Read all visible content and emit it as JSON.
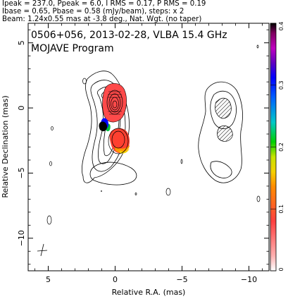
{
  "header": {
    "line1": "Ipeak = 237.0, Ppeak = 6.0, I RMS = 0.17, P RMS = 0.19",
    "line2": "Ibase = 0.65, Pbase = 0.58 (mJy/beam), steps: x 2",
    "line3": "Beam: 1.24x0.55 mas at -3.8 deg., Nat. Wgt. (no taper)"
  },
  "plot_title": {
    "line1": "0506+056, 2013-02-28, VLBA 15.4 GHz",
    "line2": "MOJAVE Program"
  },
  "chart_data": {
    "type": "contour-map",
    "xlabel": "Relative R.A. (mas)",
    "ylabel": "Relative Declination (mas)",
    "xlim": [
      6.5,
      -11.5
    ],
    "ylim": [
      -12.5,
      6.5
    ],
    "x_ticks": [
      5,
      0,
      -5,
      -10
    ],
    "y_ticks": [
      5,
      0,
      -5,
      -10
    ],
    "colorbar": {
      "min": 0,
      "max": 0.4,
      "ticks": [
        0,
        0.1,
        0.2,
        0.3,
        0.4
      ],
      "tick_labels": [
        "0",
        "0.1",
        "0.2",
        "0.3",
        "0.4"
      ],
      "colors": [
        "#ffffff",
        "#ff9090",
        "#ff3b3b",
        "#ff8c00",
        "#f5d000",
        "#c0e000",
        "#00d000",
        "#00c8c8",
        "#0060ff",
        "#0000ff",
        "#6000c0",
        "#c000c0",
        "#800060",
        "#000000"
      ]
    },
    "contour_levels_mJy": [
      0.65,
      1.3,
      2.6,
      5.2,
      10.4,
      20.8,
      41.6,
      83.2,
      166.4
    ],
    "core": {
      "x": 0.1,
      "y": 0.1
    },
    "jet_components": [
      {
        "x": 0.0,
        "y": -2.5
      },
      {
        "x": -0.5,
        "y": -5.0
      }
    ],
    "second_feature": {
      "x": -7.0,
      "y": -0.5
    },
    "beam": {
      "major_mas": 1.24,
      "minor_mas": 0.55,
      "pa_deg": -3.8
    }
  }
}
